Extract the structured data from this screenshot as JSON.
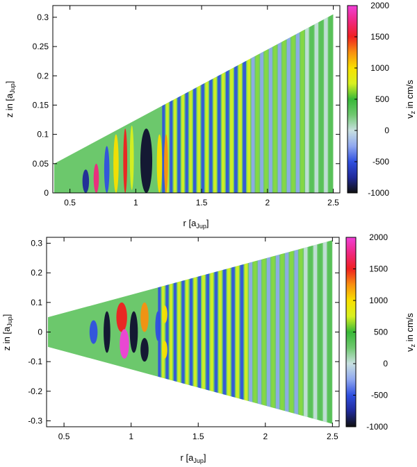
{
  "chart_data": [
    {
      "type": "heatmap",
      "name": "top-panel",
      "xlabel": "r",
      "xlabel_unit_main": "[a",
      "xlabel_unit_sub": "Jup",
      "xlabel_unit_close": "]",
      "ylabel": "z in",
      "ylabel_unit_main": "[a",
      "ylabel_unit_sub": "Jup",
      "ylabel_unit_close": "]",
      "xlim": [
        0.37,
        2.55
      ],
      "ylim": [
        0,
        0.32
      ],
      "xticks": [
        0.5,
        1,
        1.5,
        2,
        2.5
      ],
      "xtick_labels": [
        "0.5",
        "1",
        "1.5",
        "2",
        "2.5"
      ],
      "yticks": [
        0,
        0.05,
        0.1,
        0.15,
        0.2,
        0.25,
        0.3
      ],
      "ytick_labels": [
        "0",
        "0.05",
        "0.1",
        "0.15",
        "0.2",
        "0.25",
        "0.3"
      ],
      "domain": {
        "r_min": 0.38,
        "r_max": 2.5,
        "z_at_rmin": 0.05,
        "z_at_rmax": 0.305,
        "symmetric": false
      },
      "colorbar": {
        "label": "v",
        "label_sub": "z",
        "label_rest": " in cm/s",
        "range": [
          -1000,
          2000
        ],
        "ticks": [
          -1000,
          -500,
          0,
          500,
          1000,
          1500,
          2000
        ],
        "tick_labels": [
          "-1000",
          "-500",
          "0",
          "500",
          "1000",
          "1500",
          "2000"
        ]
      }
    },
    {
      "type": "heatmap",
      "name": "bottom-panel",
      "xlabel": "r",
      "xlabel_unit_main": "[a",
      "xlabel_unit_sub": "Jup",
      "xlabel_unit_close": "]",
      "ylabel": "z in",
      "ylabel_unit_main": "[a",
      "ylabel_unit_sub": "Jup",
      "ylabel_unit_close": "]",
      "xlim": [
        0.37,
        2.55
      ],
      "ylim": [
        -0.32,
        0.32
      ],
      "xticks": [
        0.5,
        1,
        1.5,
        2,
        2.5
      ],
      "xtick_labels": [
        "0.5",
        "1",
        "1.5",
        "2",
        "2.5"
      ],
      "yticks": [
        -0.3,
        -0.2,
        -0.1,
        0,
        0.1,
        0.2,
        0.3
      ],
      "ytick_labels": [
        "-0.3",
        "-0.2",
        "-0.1",
        "0",
        "0.1",
        "0.2",
        "0.3"
      ],
      "domain": {
        "r_min": 0.38,
        "r_max": 2.5,
        "z_at_rmin": 0.05,
        "z_at_rmax": 0.31,
        "symmetric": true
      },
      "colorbar": {
        "label": "v",
        "label_sub": "z",
        "label_rest": " in cm/s",
        "range": [
          -1000,
          2000
        ],
        "ticks": [
          -1000,
          -500,
          0,
          500,
          1000,
          1500,
          2000
        ],
        "tick_labels": [
          "-1000",
          "-500",
          "0",
          "500",
          "1000",
          "1500",
          "2000"
        ]
      }
    }
  ],
  "colors": {
    "background_green": "#6cc86c",
    "colormap": [
      "#101010",
      "#202a9a",
      "#3050e0",
      "#90a8f0",
      "#c8e0e0",
      "#70c870",
      "#38b838",
      "#d8f020",
      "#f8e000",
      "#f89010",
      "#f02020",
      "#f02880",
      "#f040d8"
    ]
  }
}
